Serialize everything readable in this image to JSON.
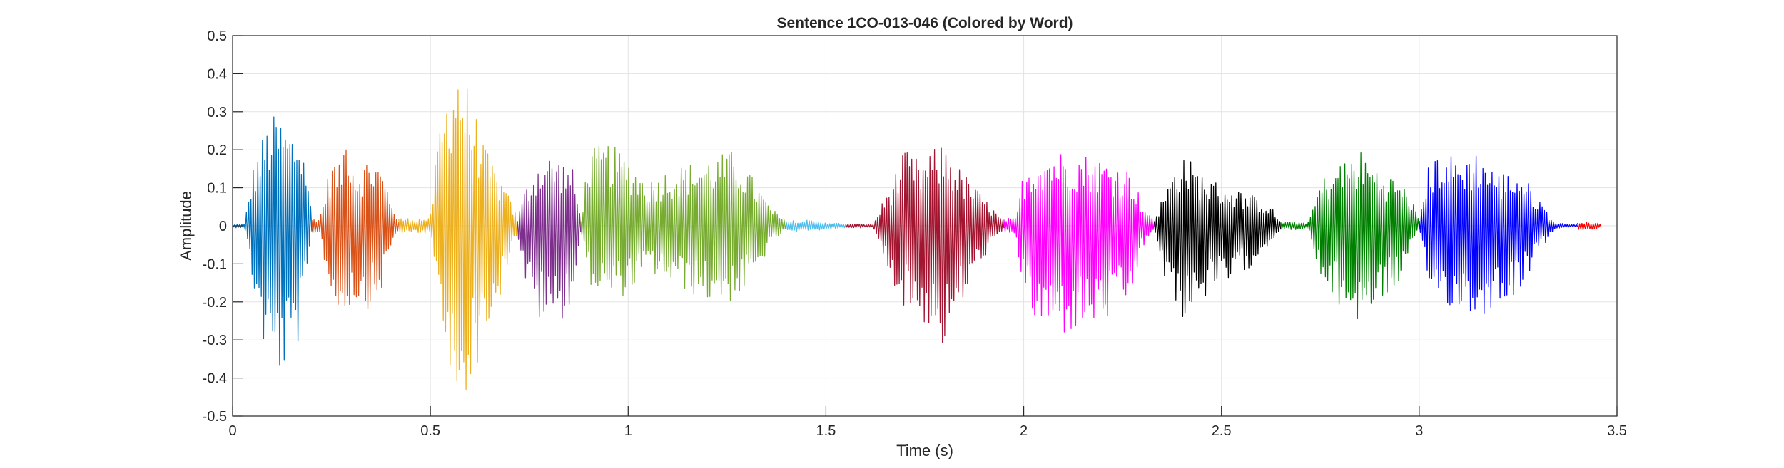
{
  "chart_data": {
    "type": "line",
    "title": "Sentence 1CO-013-046 (Colored by Word)",
    "xlabel": "Time (s)",
    "ylabel": "Amplitude",
    "xlim": [
      0,
      3.5
    ],
    "ylim": [
      -0.5,
      0.5
    ],
    "xticks": [
      0,
      0.5,
      1,
      1.5,
      2,
      2.5,
      3,
      3.5
    ],
    "xtick_labels": [
      "0",
      "0.5",
      "1",
      "1.5",
      "2",
      "2.5",
      "3",
      "3.5"
    ],
    "yticks": [
      -0.5,
      -0.4,
      -0.3,
      -0.2,
      -0.1,
      0,
      0.1,
      0.2,
      0.3,
      0.4,
      0.5
    ],
    "ytick_labels": [
      "-0.5",
      "-0.4",
      "-0.3",
      "-0.2",
      "-0.1",
      "0",
      "0.1",
      "0.2",
      "0.3",
      "0.4",
      "0.5"
    ],
    "grid": true,
    "legend": "none",
    "series": [
      {
        "color": "#0072BD",
        "segments": [
          {
            "start": 0.0,
            "end": 0.2,
            "env_t": [
              0.0,
              0.03,
              0.05,
              0.08,
              0.11,
              0.14,
              0.17,
              0.19,
              0.2
            ],
            "env_pos": [
              0.005,
              0.005,
              0.15,
              0.25,
              0.3,
              0.26,
              0.25,
              0.15,
              0.02
            ],
            "env_neg": [
              -0.005,
              -0.005,
              -0.15,
              -0.33,
              -0.4,
              -0.38,
              -0.3,
              -0.15,
              -0.02
            ]
          }
        ]
      },
      {
        "color": "#D95319",
        "segments": [
          {
            "start": 0.2,
            "end": 0.42,
            "env_t": [
              0.2,
              0.22,
              0.25,
              0.27,
              0.29,
              0.31,
              0.34,
              0.37,
              0.4,
              0.42
            ],
            "env_pos": [
              0.02,
              0.02,
              0.18,
              0.16,
              0.28,
              0.15,
              0.18,
              0.17,
              0.08,
              0.01
            ],
            "env_neg": [
              -0.02,
              -0.02,
              -0.2,
              -0.24,
              -0.22,
              -0.2,
              -0.22,
              -0.2,
              -0.06,
              -0.01
            ]
          }
        ]
      },
      {
        "color": "#EDB120",
        "segments": [
          {
            "start": 0.42,
            "end": 0.72,
            "env_t": [
              0.42,
              0.5,
              0.52,
              0.55,
              0.57,
              0.6,
              0.64,
              0.68,
              0.71,
              0.72
            ],
            "env_pos": [
              0.02,
              0.02,
              0.25,
              0.4,
              0.45,
              0.35,
              0.2,
              0.12,
              0.05,
              0.02
            ],
            "env_neg": [
              -0.02,
              -0.02,
              -0.2,
              -0.42,
              -0.5,
              -0.42,
              -0.3,
              -0.18,
              -0.05,
              -0.02
            ]
          }
        ]
      },
      {
        "color": "#7E2F8E",
        "segments": [
          {
            "start": 0.72,
            "end": 0.88,
            "env_t": [
              0.72,
              0.74,
              0.77,
              0.8,
              0.83,
              0.86,
              0.88
            ],
            "env_pos": [
              0.02,
              0.1,
              0.17,
              0.19,
              0.18,
              0.15,
              0.02
            ],
            "env_neg": [
              -0.02,
              -0.15,
              -0.25,
              -0.26,
              -0.25,
              -0.2,
              -0.02
            ]
          }
        ]
      },
      {
        "color": "#77AC30",
        "segments": [
          {
            "start": 0.88,
            "end": 1.4,
            "env_t": [
              0.88,
              0.9,
              0.95,
              1.0,
              1.05,
              1.1,
              1.2,
              1.27,
              1.32,
              1.36,
              1.4
            ],
            "env_pos": [
              0.02,
              0.2,
              0.22,
              0.18,
              0.12,
              0.15,
              0.18,
              0.2,
              0.12,
              0.05,
              0.01
            ],
            "env_neg": [
              -0.02,
              -0.15,
              -0.2,
              -0.18,
              -0.12,
              -0.15,
              -0.2,
              -0.2,
              -0.14,
              -0.05,
              -0.01
            ]
          }
        ]
      },
      {
        "color": "#4DBEEE",
        "segments": [
          {
            "start": 1.4,
            "end": 1.55,
            "env_t": [
              1.4,
              1.45,
              1.5,
              1.55
            ],
            "env_pos": [
              0.015,
              0.015,
              0.01,
              0.005
            ],
            "env_neg": [
              -0.015,
              -0.015,
              -0.01,
              -0.005
            ]
          }
        ]
      },
      {
        "color": "#A2142F",
        "segments": [
          {
            "start": 1.55,
            "end": 1.95,
            "env_t": [
              1.55,
              1.62,
              1.65,
              1.7,
              1.74,
              1.77,
              1.8,
              1.84,
              1.88,
              1.92,
              1.95
            ],
            "env_pos": [
              0.005,
              0.005,
              0.08,
              0.2,
              0.17,
              0.2,
              0.22,
              0.15,
              0.1,
              0.05,
              0.01
            ],
            "env_neg": [
              -0.005,
              -0.005,
              -0.1,
              -0.22,
              -0.25,
              -0.28,
              -0.33,
              -0.22,
              -0.12,
              -0.05,
              -0.01
            ]
          }
        ]
      },
      {
        "color": "#FF00FF",
        "segments": [
          {
            "start": 1.95,
            "end": 2.33,
            "env_t": [
              1.95,
              1.98,
              2.0,
              2.04,
              2.1,
              2.16,
              2.22,
              2.27,
              2.3,
              2.33
            ],
            "env_pos": [
              0.02,
              0.02,
              0.15,
              0.2,
              0.2,
              0.19,
              0.17,
              0.15,
              0.06,
              0.01
            ],
            "env_neg": [
              -0.02,
              -0.02,
              -0.2,
              -0.28,
              -0.29,
              -0.27,
              -0.25,
              -0.2,
              -0.06,
              -0.01
            ]
          }
        ]
      },
      {
        "color": "#000000",
        "segments": [
          {
            "start": 2.33,
            "end": 2.65,
            "env_t": [
              2.33,
              2.36,
              2.4,
              2.44,
              2.48,
              2.53,
              2.58,
              2.62,
              2.65
            ],
            "env_pos": [
              0.02,
              0.1,
              0.2,
              0.15,
              0.12,
              0.1,
              0.08,
              0.06,
              0.01
            ],
            "env_neg": [
              -0.02,
              -0.15,
              -0.25,
              -0.2,
              -0.18,
              -0.15,
              -0.1,
              -0.05,
              -0.01
            ]
          }
        ]
      },
      {
        "color": "#008000",
        "segments": [
          {
            "start": 2.65,
            "end": 3.0,
            "env_t": [
              2.65,
              2.72,
              2.75,
              2.8,
              2.85,
              2.9,
              2.95,
              2.98,
              3.0
            ],
            "env_pos": [
              0.01,
              0.01,
              0.12,
              0.17,
              0.2,
              0.15,
              0.12,
              0.08,
              0.01
            ],
            "env_neg": [
              -0.01,
              -0.01,
              -0.15,
              -0.22,
              -0.26,
              -0.2,
              -0.15,
              -0.06,
              -0.01
            ]
          }
        ]
      },
      {
        "color": "#0000FF",
        "segments": [
          {
            "start": 3.0,
            "end": 3.4,
            "env_t": [
              3.0,
              3.02,
              3.05,
              3.1,
              3.15,
              3.2,
              3.25,
              3.3,
              3.34,
              3.37,
              3.4
            ],
            "env_pos": [
              0.02,
              0.15,
              0.2,
              0.18,
              0.2,
              0.14,
              0.15,
              0.08,
              0.01,
              0.005,
              0.003
            ],
            "env_neg": [
              -0.02,
              -0.15,
              -0.2,
              -0.22,
              -0.25,
              -0.2,
              -0.18,
              -0.08,
              -0.01,
              -0.005,
              -0.003
            ]
          }
        ]
      },
      {
        "color": "#FF0000",
        "segments": [
          {
            "start": 3.4,
            "end": 3.46,
            "env_t": [
              3.4,
              3.43,
              3.46
            ],
            "env_pos": [
              0.012,
              0.01,
              0.006
            ],
            "env_neg": [
              -0.012,
              -0.01,
              -0.006
            ]
          }
        ]
      }
    ]
  }
}
